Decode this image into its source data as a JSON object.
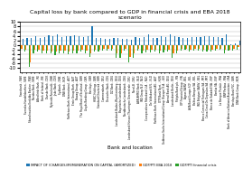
{
  "chart_data": {
    "type": "bar",
    "title": "Capital loss by bank compared to GDP in financial crisis and EBA 2018 scenario",
    "x_label": "Bank and location",
    "categories": [
      "Swedbank - SWE",
      "Svenska Handelsbanken - SWE",
      "Skandinaviska Enskilda Banken - SWE",
      "Nordea Bank - SWE",
      "Allied Irish Bank - IRE",
      "Bank of Ireland - IRE",
      "Danske Bank - DNK",
      "Nykredit Realkredit - DNK",
      "Jyske Bank - DNK",
      "Sydbank - DNK",
      "DNB Bank - NOR",
      "Raiffeisen Bank International - AUT",
      "Erste Group Bank - AUT",
      "Bawag Group - AUT",
      "The Royal Bank of Scotland - GBR",
      "Lloyds Banking Group - GBR",
      "Barclays - GBR",
      "HSBC Holdings - GBR",
      "Standard Chartered - GBR",
      "Commerzbank - DEU",
      "Deutsche Bank - DEU",
      "DZ Bank - DEU",
      "Landesbank Baden-Wuerttemberg - DEU",
      "Bayerische Landesbank - DEU",
      "Norddeutsche Landesbank - DEU",
      "Landesbank Hessen-Thueringen Girozentrale - DEU",
      "NordLB - DEU",
      "ABN AMRO Bank - NLD",
      "ING Groep N.V. - NLD",
      "Cooeperatieve Rabobank U.A. - NLD",
      "De Volksbank N.V. - NLD",
      "Raiffeisen Bank International AG - AUT",
      "OTP Bank Nyrt. - HUN",
      "Goldman Sachs International Group (Europe) S.A. - LUX",
      "Aareal Bank AG - DEU",
      "Landesbank Berlin - DEU",
      "Pohjola Bank plc - FIN",
      "OP Financial Group - FIN",
      "Ageas SA/NV - BEL",
      "AXA Bank Europe SCF - BEL",
      "Belfius Banque SA - BEL",
      "ING Belgium SA/NV - BEL",
      "Banco Comercial Portugues SA - PRT",
      "Caixa Geral De Depositos SA - PRT",
      "Banco de Sabadell SA - ESP",
      "Bankia SA - ESP",
      "La Banque Postale - FRA",
      "BNP Paribas - FRA",
      "Bank of America National Association - USA",
      "Barclays Bank PLC - GBR",
      "DNB Bank Group - NOR"
    ],
    "series": [
      {
        "name": "IMPACT OF (CHARGES)/REMUNERATION ON CAPITAL (AMORTIZED)",
        "values": [
          2.5,
          3.0,
          3.2,
          3.8,
          3.2,
          3.5,
          4.2,
          3.8,
          4.5,
          3.5,
          4.0,
          3.8,
          4.2,
          3.9,
          3.5,
          4.0,
          8.0,
          3.0,
          3.2,
          2.8,
          2.5,
          3.0,
          3.0,
          2.5,
          2.8,
          2.2,
          3.5,
          3.0,
          3.5,
          4.5,
          3.0,
          3.2,
          3.8,
          3.5,
          4.5,
          4.0,
          3.5,
          3.0,
          3.2,
          3.5,
          3.5,
          3.5,
          4.0,
          4.0,
          3.5,
          3.5,
          3.0,
          4.5,
          0.5,
          0.8,
          2.0
        ]
      },
      {
        "name": "GDP/PTI EBA 2018",
        "values": [
          -1.5,
          -2.0,
          -7.5,
          -2.0,
          -2.2,
          -2.5,
          -2.5,
          -2.8,
          -3.0,
          -2.5,
          -2.5,
          -2.8,
          -2.5,
          -2.5,
          -2.2,
          -2.5,
          -3.5,
          -2.0,
          -2.0,
          -1.8,
          -1.5,
          -1.8,
          -3.5,
          -3.5,
          -1.5,
          -5.0,
          -3.5,
          -1.5,
          -2.5,
          -2.0,
          -2.2,
          -2.0,
          -2.5,
          -2.2,
          -2.0,
          -3.5,
          -2.5,
          -1.8,
          -1.5,
          -2.0,
          -1.8,
          -1.8,
          -2.0,
          -2.0,
          -2.0,
          -1.8,
          -1.5,
          -2.2,
          -2.0,
          -1.8,
          -1.0
        ]
      },
      {
        "name": "GDP/PTI financial crisis",
        "values": [
          -2.5,
          -3.0,
          -9.5,
          -3.5,
          -3.0,
          -3.5,
          -3.5,
          -3.5,
          -4.5,
          -3.5,
          -3.5,
          -4.0,
          -3.5,
          -3.5,
          -3.0,
          -3.5,
          -5.0,
          -3.0,
          -3.0,
          -2.5,
          -2.5,
          -2.5,
          -5.5,
          -5.5,
          -2.5,
          -7.5,
          -5.5,
          -2.5,
          -3.5,
          -3.2,
          -3.2,
          -3.0,
          -3.5,
          -3.2,
          -3.0,
          -5.5,
          -3.5,
          -2.5,
          -2.0,
          -3.0,
          -2.5,
          -2.5,
          -3.0,
          -3.0,
          -3.0,
          -2.5,
          -2.2,
          -3.5,
          -2.5,
          -2.5,
          -2.0
        ]
      }
    ],
    "ylim": [
      -12,
      10
    ],
    "yticks": [
      -10,
      -8,
      -6,
      -4,
      -2,
      0,
      2,
      4,
      6,
      8,
      10
    ],
    "grid": true,
    "legend": "lower center"
  }
}
